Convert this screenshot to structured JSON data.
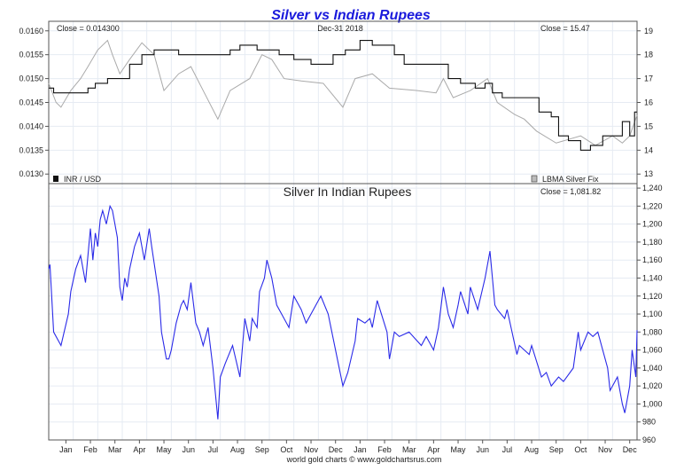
{
  "chart_data": [
    {
      "type": "line",
      "title": "Silver vs Indian Rupees",
      "date_label": "Dec-31  2018",
      "x_unit": "months since Jan 2017",
      "xlim": [
        0,
        24
      ],
      "left_axis": {
        "ylim": [
          0.0128,
          0.0162
        ],
        "ticks": [
          "0.0130",
          "0.0135",
          "0.0140",
          "0.0145",
          "0.0150",
          "0.0155",
          "0.0160"
        ],
        "tick_values": [
          0.013,
          0.0135,
          0.014,
          0.0145,
          0.015,
          0.0155,
          0.016
        ]
      },
      "right_axis": {
        "ylim": [
          12.6,
          19.4
        ],
        "ticks": [
          "13",
          "14",
          "15",
          "16",
          "17",
          "18",
          "19"
        ],
        "tick_values": [
          13,
          14,
          15,
          16,
          17,
          18,
          19
        ]
      },
      "grid": true,
      "series": [
        {
          "name": "INR / USD",
          "close_label": "Close = 0.014300",
          "axis": "left",
          "color": "#111111",
          "points": [
            [
              0,
              0.0148
            ],
            [
              0.2,
              0.0147
            ],
            [
              1.4,
              0.0147
            ],
            [
              1.6,
              0.0148
            ],
            [
              1.9,
              0.0149
            ],
            [
              2.4,
              0.015
            ],
            [
              2.9,
              0.015
            ],
            [
              3.3,
              0.0153
            ],
            [
              3.8,
              0.0155
            ],
            [
              4.3,
              0.0156
            ],
            [
              5.3,
              0.0155
            ],
            [
              6.7,
              0.0155
            ],
            [
              7.4,
              0.0156
            ],
            [
              7.8,
              0.0157
            ],
            [
              8.5,
              0.0156
            ],
            [
              9.4,
              0.0155
            ],
            [
              10.0,
              0.0154
            ],
            [
              10.7,
              0.0153
            ],
            [
              11.6,
              0.0155
            ],
            [
              12.1,
              0.0156
            ],
            [
              12.7,
              0.0158
            ],
            [
              13.2,
              0.0157
            ],
            [
              14.1,
              0.0155
            ],
            [
              14.5,
              0.0153
            ],
            [
              15.8,
              0.0153
            ],
            [
              16.3,
              0.015
            ],
            [
              16.8,
              0.0149
            ],
            [
              17.4,
              0.0148
            ],
            [
              17.8,
              0.0149
            ],
            [
              18.1,
              0.0147
            ],
            [
              18.5,
              0.0146
            ],
            [
              19.6,
              0.0146
            ],
            [
              20.0,
              0.0143
            ],
            [
              20.5,
              0.0142
            ],
            [
              20.8,
              0.0138
            ],
            [
              21.2,
              0.0137
            ],
            [
              21.7,
              0.0135
            ],
            [
              22.1,
              0.0136
            ],
            [
              22.6,
              0.0138
            ],
            [
              23.4,
              0.0141
            ],
            [
              23.7,
              0.0138
            ],
            [
              23.9,
              0.0143
            ],
            [
              24,
              0.0143
            ]
          ]
        },
        {
          "name": "LBMA Silver Fix",
          "close_label": "Close = 15.47",
          "axis": "right",
          "color": "#aaaaaa",
          "points": [
            [
              0,
              16.8
            ],
            [
              0.3,
              16.0
            ],
            [
              0.5,
              15.8
            ],
            [
              0.9,
              16.5
            ],
            [
              1.3,
              17.0
            ],
            [
              1.6,
              17.5
            ],
            [
              2.0,
              18.2
            ],
            [
              2.4,
              18.6
            ],
            [
              2.6,
              18.0
            ],
            [
              2.9,
              17.2
            ],
            [
              3.3,
              17.8
            ],
            [
              3.8,
              18.5
            ],
            [
              4.3,
              18.0
            ],
            [
              4.7,
              16.5
            ],
            [
              5.3,
              17.2
            ],
            [
              5.8,
              17.5
            ],
            [
              6.3,
              16.5
            ],
            [
              6.9,
              15.3
            ],
            [
              7.4,
              16.5
            ],
            [
              8.2,
              17.0
            ],
            [
              8.7,
              18.0
            ],
            [
              9.1,
              17.8
            ],
            [
              9.6,
              17.0
            ],
            [
              10.3,
              16.9
            ],
            [
              11.2,
              16.8
            ],
            [
              12.0,
              15.8
            ],
            [
              12.5,
              17.0
            ],
            [
              13.2,
              17.2
            ],
            [
              13.9,
              16.6
            ],
            [
              15.0,
              16.5
            ],
            [
              15.8,
              16.4
            ],
            [
              16.1,
              17.0
            ],
            [
              16.5,
              16.2
            ],
            [
              17.2,
              16.5
            ],
            [
              17.9,
              17.0
            ],
            [
              18.3,
              16.0
            ],
            [
              19.0,
              15.5
            ],
            [
              19.4,
              15.3
            ],
            [
              19.9,
              14.8
            ],
            [
              20.7,
              14.3
            ],
            [
              21.7,
              14.6
            ],
            [
              22.3,
              14.2
            ],
            [
              23.0,
              14.6
            ],
            [
              23.4,
              14.3
            ],
            [
              23.7,
              14.6
            ],
            [
              24,
              15.47
            ]
          ]
        }
      ]
    },
    {
      "type": "line",
      "title": "Silver In Indian Rupees",
      "close_label": "Close = 1,081.82",
      "xlim": [
        0,
        24
      ],
      "ylim": [
        960,
        1245
      ],
      "yticks": [
        "960",
        "980",
        "1,000",
        "1,020",
        "1,040",
        "1,060",
        "1,080",
        "1,100",
        "1,120",
        "1,140",
        "1,160",
        "1,180",
        "1,200",
        "1,220",
        "1,240"
      ],
      "ytick_values": [
        960,
        980,
        1000,
        1020,
        1040,
        1060,
        1080,
        1100,
        1120,
        1140,
        1160,
        1180,
        1200,
        1220,
        1240
      ],
      "xticks": [
        "Jan",
        "Feb",
        "Mar",
        "Apr",
        "May",
        "Jun",
        "Jul",
        "Aug",
        "Sep",
        "Oct",
        "Nov",
        "Dec",
        "Jan",
        "Feb",
        "Mar",
        "Apr",
        "May",
        "Jun",
        "Jul",
        "Aug",
        "Sep",
        "Oct",
        "Nov",
        "Dec"
      ],
      "grid": true,
      "series": [
        {
          "name": "Silver In Indian Rupees",
          "color": "#2a2ae8",
          "points": [
            [
              0,
              1150
            ],
            [
              0.05,
              1155
            ],
            [
              0.2,
              1080
            ],
            [
              0.5,
              1065
            ],
            [
              0.8,
              1100
            ],
            [
              0.9,
              1125
            ],
            [
              1.1,
              1150
            ],
            [
              1.3,
              1165
            ],
            [
              1.5,
              1135
            ],
            [
              1.7,
              1195
            ],
            [
              1.8,
              1160
            ],
            [
              1.9,
              1190
            ],
            [
              2.0,
              1175
            ],
            [
              2.1,
              1205
            ],
            [
              2.2,
              1215
            ],
            [
              2.35,
              1200
            ],
            [
              2.5,
              1220
            ],
            [
              2.6,
              1215
            ],
            [
              2.8,
              1185
            ],
            [
              2.9,
              1130
            ],
            [
              3.0,
              1115
            ],
            [
              3.1,
              1140
            ],
            [
              3.2,
              1130
            ],
            [
              3.3,
              1150
            ],
            [
              3.5,
              1175
            ],
            [
              3.7,
              1190
            ],
            [
              3.9,
              1160
            ],
            [
              4.1,
              1195
            ],
            [
              4.2,
              1175
            ],
            [
              4.5,
              1120
            ],
            [
              4.6,
              1080
            ],
            [
              4.8,
              1050
            ],
            [
              4.9,
              1050
            ],
            [
              5.0,
              1060
            ],
            [
              5.2,
              1090
            ],
            [
              5.4,
              1110
            ],
            [
              5.5,
              1115
            ],
            [
              5.65,
              1105
            ],
            [
              5.8,
              1135
            ],
            [
              6.0,
              1090
            ],
            [
              6.15,
              1080
            ],
            [
              6.3,
              1065
            ],
            [
              6.5,
              1085
            ],
            [
              6.7,
              1040
            ],
            [
              6.9,
              983
            ],
            [
              7.0,
              1030
            ],
            [
              7.2,
              1045
            ],
            [
              7.5,
              1065
            ],
            [
              7.8,
              1030
            ],
            [
              8.0,
              1095
            ],
            [
              8.2,
              1070
            ],
            [
              8.3,
              1095
            ],
            [
              8.5,
              1085
            ],
            [
              8.6,
              1125
            ],
            [
              8.8,
              1140
            ],
            [
              8.9,
              1160
            ],
            [
              9.1,
              1140
            ],
            [
              9.3,
              1110
            ],
            [
              9.5,
              1100
            ],
            [
              9.8,
              1085
            ],
            [
              10.0,
              1120
            ],
            [
              10.3,
              1105
            ],
            [
              10.5,
              1090
            ],
            [
              10.9,
              1110
            ],
            [
              11.1,
              1120
            ],
            [
              11.4,
              1100
            ],
            [
              11.7,
              1060
            ],
            [
              12.0,
              1020
            ],
            [
              12.2,
              1035
            ],
            [
              12.5,
              1070
            ],
            [
              12.6,
              1095
            ],
            [
              12.9,
              1090
            ],
            [
              13.1,
              1095
            ],
            [
              13.2,
              1085
            ],
            [
              13.4,
              1115
            ],
            [
              13.8,
              1080
            ],
            [
              13.9,
              1050
            ],
            [
              14.1,
              1080
            ],
            [
              14.3,
              1075
            ],
            [
              14.7,
              1080
            ],
            [
              15.2,
              1065
            ],
            [
              15.4,
              1075
            ],
            [
              15.7,
              1060
            ],
            [
              15.9,
              1085
            ],
            [
              16.1,
              1130
            ],
            [
              16.3,
              1100
            ],
            [
              16.5,
              1085
            ],
            [
              16.7,
              1110
            ],
            [
              16.8,
              1125
            ],
            [
              17.1,
              1100
            ],
            [
              17.2,
              1130
            ],
            [
              17.5,
              1105
            ],
            [
              17.8,
              1140
            ],
            [
              18.0,
              1170
            ],
            [
              18.2,
              1110
            ],
            [
              18.3,
              1105
            ],
            [
              18.6,
              1095
            ],
            [
              18.7,
              1105
            ],
            [
              18.9,
              1080
            ],
            [
              19.1,
              1055
            ],
            [
              19.2,
              1065
            ],
            [
              19.6,
              1055
            ],
            [
              19.7,
              1065
            ],
            [
              20.1,
              1030
            ],
            [
              20.3,
              1035
            ],
            [
              20.5,
              1020
            ],
            [
              20.8,
              1030
            ],
            [
              21.0,
              1025
            ],
            [
              21.4,
              1040
            ],
            [
              21.6,
              1080
            ],
            [
              21.7,
              1060
            ],
            [
              22.0,
              1080
            ],
            [
              22.2,
              1075
            ],
            [
              22.4,
              1080
            ],
            [
              22.6,
              1060
            ],
            [
              22.8,
              1040
            ],
            [
              22.9,
              1015
            ],
            [
              23.2,
              1030
            ],
            [
              23.4,
              1000
            ],
            [
              23.5,
              990
            ],
            [
              23.7,
              1020
            ],
            [
              23.8,
              1060
            ],
            [
              23.95,
              1030
            ],
            [
              24,
              1082
            ]
          ]
        }
      ]
    }
  ],
  "footer": "world gold charts © www.goldchartsrus.com"
}
